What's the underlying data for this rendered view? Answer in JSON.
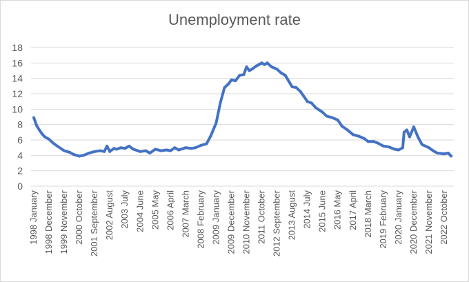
{
  "chart_data": {
    "type": "line",
    "title": "Unemployment rate",
    "xlabel": "",
    "ylabel": "",
    "ylim": [
      0,
      18
    ],
    "yticks": [
      0,
      2,
      4,
      6,
      8,
      10,
      12,
      14,
      16,
      18
    ],
    "grid": true,
    "legend": "none",
    "line_color": "#4472C4",
    "grid_color": "#d9d9d9",
    "x_tick_labels": [
      "1998 January",
      "1998 December",
      "1999 November",
      "2000 October",
      "2001 September",
      "2002 August",
      "2003 July",
      "2004 June",
      "2005 May",
      "2006 April",
      "2007 March",
      "2008 February",
      "2009 January",
      "2009 December",
      "2010 November",
      "2011 October",
      "2012 September",
      "2013 August",
      "2014 July",
      "2015 June",
      "2016 May",
      "2017 April",
      "2018 March",
      "2019 February",
      "2020 January",
      "2020 December",
      "2021 November",
      "2022 October"
    ],
    "series": [
      {
        "x": [
          "1998 January",
          "1998 March",
          "1998 May",
          "1998 July",
          "1998 September",
          "1998 December",
          "1999 March",
          "1999 June",
          "1999 November",
          "2000 March",
          "2000 June",
          "2000 October",
          "2001 January",
          "2001 May",
          "2001 September",
          "2002 January",
          "2002 April",
          "2002 June",
          "2002 August",
          "2002 November",
          "2003 January",
          "2003 April",
          "2003 July",
          "2003 October",
          "2004 January",
          "2004 June",
          "2004 October",
          "2005 January",
          "2005 May",
          "2005 September",
          "2006 January",
          "2006 April",
          "2006 July",
          "2006 October",
          "2007 March",
          "2007 July",
          "2007 October",
          "2008 February",
          "2008 June",
          "2008 September",
          "2009 January",
          "2009 April",
          "2009 July",
          "2009 October",
          "2009 December",
          "2010 March",
          "2010 June",
          "2010 September",
          "2010 November",
          "2011 January",
          "2011 March",
          "2011 June",
          "2011 August",
          "2011 October",
          "2011 December",
          "2012 February",
          "2012 May",
          "2012 September",
          "2012 December",
          "2013 March",
          "2013 June",
          "2013 August",
          "2013 November",
          "2014 February",
          "2014 July",
          "2014 October",
          "2015 January",
          "2015 June",
          "2015 September",
          "2016 January",
          "2016 May",
          "2016 August",
          "2016 December",
          "2017 April",
          "2017 August",
          "2017 December",
          "2018 March",
          "2018 July",
          "2018 October",
          "2019 February",
          "2019 June",
          "2019 October",
          "2020 January",
          "2020 April",
          "2020 May",
          "2020 July",
          "2020 September",
          "2020 December",
          "2021 March",
          "2021 June",
          "2021 November",
          "2022 February",
          "2022 May",
          "2022 October",
          "2023 January",
          "2023 March"
        ],
        "values": [
          8.9,
          7.9,
          7.3,
          6.8,
          6.4,
          6.1,
          5.6,
          5.2,
          4.6,
          4.4,
          4.1,
          3.9,
          4.0,
          4.3,
          4.5,
          4.6,
          4.5,
          5.2,
          4.5,
          4.9,
          4.8,
          5.0,
          4.9,
          5.2,
          4.8,
          4.5,
          4.6,
          4.3,
          4.8,
          4.6,
          4.7,
          4.6,
          5.0,
          4.7,
          5.0,
          4.9,
          5.0,
          5.3,
          5.5,
          6.5,
          8.2,
          10.8,
          12.8,
          13.3,
          13.8,
          13.7,
          14.4,
          14.5,
          15.5,
          15.0,
          15.2,
          15.6,
          15.8,
          16.0,
          15.8,
          16.0,
          15.5,
          15.2,
          14.7,
          14.4,
          13.5,
          12.9,
          12.8,
          12.3,
          11.0,
          10.8,
          10.2,
          9.6,
          9.1,
          8.9,
          8.6,
          7.8,
          7.3,
          6.7,
          6.5,
          6.2,
          5.8,
          5.8,
          5.6,
          5.2,
          5.1,
          4.8,
          4.7,
          5.0,
          7.0,
          7.3,
          6.4,
          7.7,
          6.4,
          5.4,
          5.0,
          4.6,
          4.3,
          4.2,
          4.3,
          3.9
        ]
      }
    ]
  }
}
